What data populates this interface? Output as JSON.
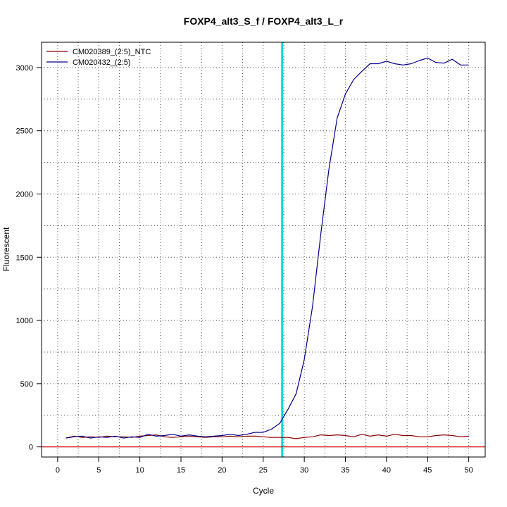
{
  "chart_data": {
    "type": "line",
    "title": "FOXP4_alt3_S_f / FOXP4_alt3_L_r",
    "xlabel": "Cycle",
    "ylabel": "Fluorescent",
    "xlim": [
      -1.96,
      52.0
    ],
    "ylim": [
      -80,
      3200
    ],
    "xticks": [
      0,
      5,
      10,
      15,
      20,
      25,
      30,
      35,
      40,
      45,
      50
    ],
    "yticks": [
      0,
      500,
      1000,
      1500,
      2000,
      2500,
      3000
    ],
    "grid": true,
    "legend_position": "top-left",
    "threshold_cycle": 27.3,
    "threshold_color": "#00ffff",
    "baseline_value": 0,
    "baseline_color": "#cc0000",
    "series": [
      {
        "name": "CM020389_(2:5)_NTC",
        "color": "#8b0000",
        "x": [
          1,
          2,
          3,
          4,
          5,
          6,
          7,
          8,
          9,
          10,
          11,
          12,
          13,
          14,
          15,
          16,
          17,
          18,
          19,
          20,
          21,
          22,
          23,
          24,
          25,
          26,
          27,
          28,
          29,
          30,
          31,
          32,
          33,
          34,
          35,
          36,
          37,
          38,
          39,
          40,
          41,
          42,
          43,
          44,
          45,
          46,
          47,
          48,
          49,
          50
        ],
        "y": [
          70,
          85,
          75,
          80,
          75,
          85,
          80,
          80,
          75,
          85,
          90,
          95,
          80,
          75,
          80,
          85,
          80,
          75,
          80,
          80,
          85,
          80,
          85,
          85,
          80,
          75,
          75,
          75,
          65,
          75,
          80,
          95,
          90,
          95,
          90,
          80,
          100,
          85,
          95,
          85,
          100,
          90,
          90,
          80,
          80,
          90,
          95,
          90,
          80,
          85
        ]
      },
      {
        "name": "CM020432_(2:5)",
        "color": "#00008b",
        "x": [
          1,
          2,
          3,
          4,
          5,
          6,
          7,
          8,
          9,
          10,
          11,
          12,
          13,
          14,
          15,
          16,
          17,
          18,
          19,
          20,
          21,
          22,
          23,
          24,
          25,
          26,
          27,
          28,
          29,
          30,
          31,
          32,
          33,
          34,
          35,
          36,
          37,
          38,
          39,
          40,
          41,
          42,
          43,
          44,
          45,
          46,
          47,
          48,
          49,
          50
        ],
        "y": [
          70,
          80,
          85,
          70,
          80,
          75,
          85,
          70,
          80,
          75,
          100,
          85,
          90,
          100,
          85,
          95,
          85,
          80,
          85,
          90,
          100,
          90,
          100,
          115,
          115,
          140,
          185,
          295,
          420,
          690,
          1110,
          1680,
          2200,
          2600,
          2790,
          2905,
          2970,
          3030,
          3030,
          3050,
          3030,
          3020,
          3030,
          3055,
          3075,
          3040,
          3035,
          3065,
          3020,
          3020
        ]
      }
    ]
  }
}
